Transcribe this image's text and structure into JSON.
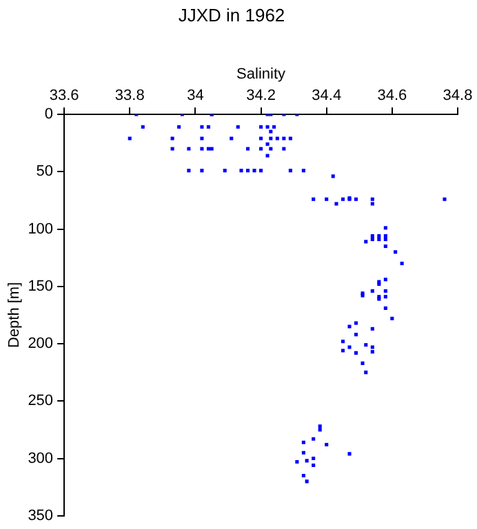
{
  "chart_data": {
    "type": "scatter",
    "title": "JJXD in 1962",
    "xlabel": "Salinity",
    "ylabel": "Depth [m]",
    "xlim": [
      33.6,
      34.8
    ],
    "xticks": [
      33.6,
      33.8,
      34,
      34.2,
      34.4,
      34.6,
      34.8
    ],
    "ylim": [
      350,
      0
    ],
    "yticks": [
      0,
      50,
      100,
      150,
      200,
      250,
      300,
      350
    ],
    "grid": false,
    "legend": false,
    "marker": "square",
    "series": [
      {
        "color": "#0000ff",
        "x": [
          33.82,
          33.96,
          34.05,
          34.05,
          34.22,
          34.23,
          34.27,
          34.31,
          33.84,
          33.95,
          34.02,
          34.04,
          34.13,
          34.2,
          34.22,
          34.24,
          34.23,
          33.8,
          33.93,
          34.02,
          34.11,
          34.2,
          34.23,
          34.25,
          34.27,
          34.29,
          34.22,
          33.93,
          33.98,
          34.02,
          34.04,
          34.05,
          34.16,
          34.2,
          34.23,
          34.27,
          34.22,
          33.98,
          34.02,
          34.09,
          34.14,
          34.16,
          34.18,
          34.2,
          34.29,
          34.33,
          34.42,
          34.36,
          34.4,
          34.45,
          34.47,
          34.49,
          34.54,
          34.76,
          34.47,
          34.43,
          34.54,
          34.58,
          34.56,
          34.58,
          34.54,
          34.54,
          34.56,
          34.58,
          34.52,
          34.58,
          34.61,
          34.63,
          34.58,
          34.56,
          34.56,
          34.54,
          34.58,
          34.51,
          34.51,
          34.56,
          34.58,
          34.56,
          34.58,
          34.6,
          34.49,
          34.47,
          34.54,
          34.49,
          34.45,
          34.52,
          34.47,
          34.54,
          34.45,
          34.54,
          34.49,
          34.51,
          34.52,
          34.38,
          34.38,
          34.36,
          34.33,
          34.4,
          34.33,
          34.47,
          34.36,
          34.34,
          34.31,
          34.36,
          34.33,
          34.34
        ],
        "values": [
          0,
          0,
          0,
          0,
          0,
          0,
          0,
          0,
          11,
          11,
          11,
          11,
          11,
          11,
          11,
          11,
          15,
          21,
          21,
          21,
          21,
          21,
          21,
          21,
          21,
          21,
          26,
          30,
          30,
          30,
          30,
          30,
          30,
          30,
          30,
          30,
          36,
          49,
          49,
          49,
          49,
          49,
          49,
          49,
          49,
          49,
          54,
          74,
          74,
          74,
          74,
          74,
          74,
          74,
          73,
          78,
          78,
          99,
          106,
          106,
          106,
          109,
          109,
          109,
          111,
          115,
          120,
          130,
          144,
          146,
          148,
          154,
          154,
          156,
          158,
          159,
          159,
          161,
          169,
          178,
          182,
          185,
          187,
          192,
          198,
          201,
          203,
          203,
          206,
          207,
          208,
          217,
          225,
          272,
          275,
          283,
          286,
          288,
          295,
          296,
          300,
          302,
          303,
          306,
          315,
          320
        ]
      }
    ]
  }
}
